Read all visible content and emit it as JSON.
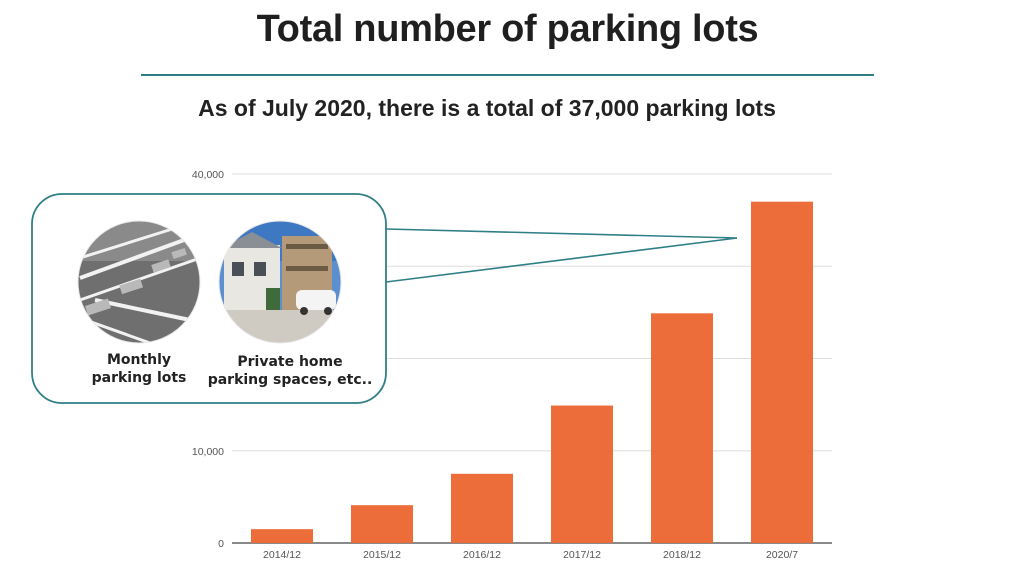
{
  "header": {
    "title": "Total number of parking lots",
    "subtitle": "As of July 2020, there is a total of 37,000 parking lots"
  },
  "callout": {
    "items": [
      {
        "label_line1": "Monthly",
        "label_line2": "parking lots",
        "icon": "parking-lot-photo"
      },
      {
        "label_line1": "Private home",
        "label_line2": "parking spaces, etc..",
        "icon": "house-driveway-photo"
      }
    ],
    "border_color": "#2f7f86"
  },
  "chart_data": {
    "type": "bar",
    "categories": [
      "2014/12",
      "2015/12",
      "2016/12",
      "2017/12",
      "2018/12",
      "2020/7"
    ],
    "values": [
      1500,
      4100,
      7500,
      14900,
      24900,
      37000
    ],
    "ylim": [
      0,
      40000
    ],
    "y_ticks": [
      0,
      10000,
      40000
    ],
    "y_tick_labels": [
      "0",
      "10,000",
      "40,000"
    ],
    "gridlines": [
      0,
      10000,
      20000,
      30000,
      40000
    ],
    "grid": true,
    "bar_color": "#ec6c3a",
    "grid_color": "#dddddd"
  }
}
